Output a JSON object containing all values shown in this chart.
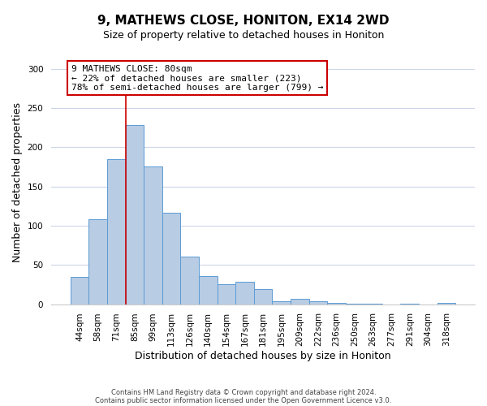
{
  "title": "9, MATHEWS CLOSE, HONITON, EX14 2WD",
  "subtitle": "Size of property relative to detached houses in Honiton",
  "xlabel": "Distribution of detached houses by size in Honiton",
  "ylabel": "Number of detached properties",
  "bar_labels": [
    "44sqm",
    "58sqm",
    "71sqm",
    "85sqm",
    "99sqm",
    "113sqm",
    "126sqm",
    "140sqm",
    "154sqm",
    "167sqm",
    "181sqm",
    "195sqm",
    "209sqm",
    "222sqm",
    "236sqm",
    "250sqm",
    "263sqm",
    "277sqm",
    "291sqm",
    "304sqm",
    "318sqm"
  ],
  "bar_values": [
    35,
    108,
    185,
    228,
    176,
    116,
    61,
    36,
    25,
    29,
    19,
    4,
    7,
    4,
    2,
    1,
    1,
    0,
    1,
    0,
    2
  ],
  "bar_color": "#b8cce4",
  "bar_edge_color": "#5b9bd5",
  "vline_x_idx": 2,
  "vline_color": "#cc0000",
  "annotation_text": "9 MATHEWS CLOSE: 80sqm\n← 22% of detached houses are smaller (223)\n78% of semi-detached houses are larger (799) →",
  "annotation_box_edge": "#cc0000",
  "ylim": [
    0,
    310
  ],
  "yticks": [
    0,
    50,
    100,
    150,
    200,
    250,
    300
  ],
  "footer1": "Contains HM Land Registry data © Crown copyright and database right 2024.",
  "footer2": "Contains public sector information licensed under the Open Government Licence v3.0.",
  "background_color": "#ffffff",
  "grid_color": "#ccd6e8",
  "title_fontsize": 11,
  "subtitle_fontsize": 9,
  "axis_label_fontsize": 9,
  "tick_fontsize": 7.5,
  "annotation_fontsize": 8,
  "footer_fontsize": 6
}
